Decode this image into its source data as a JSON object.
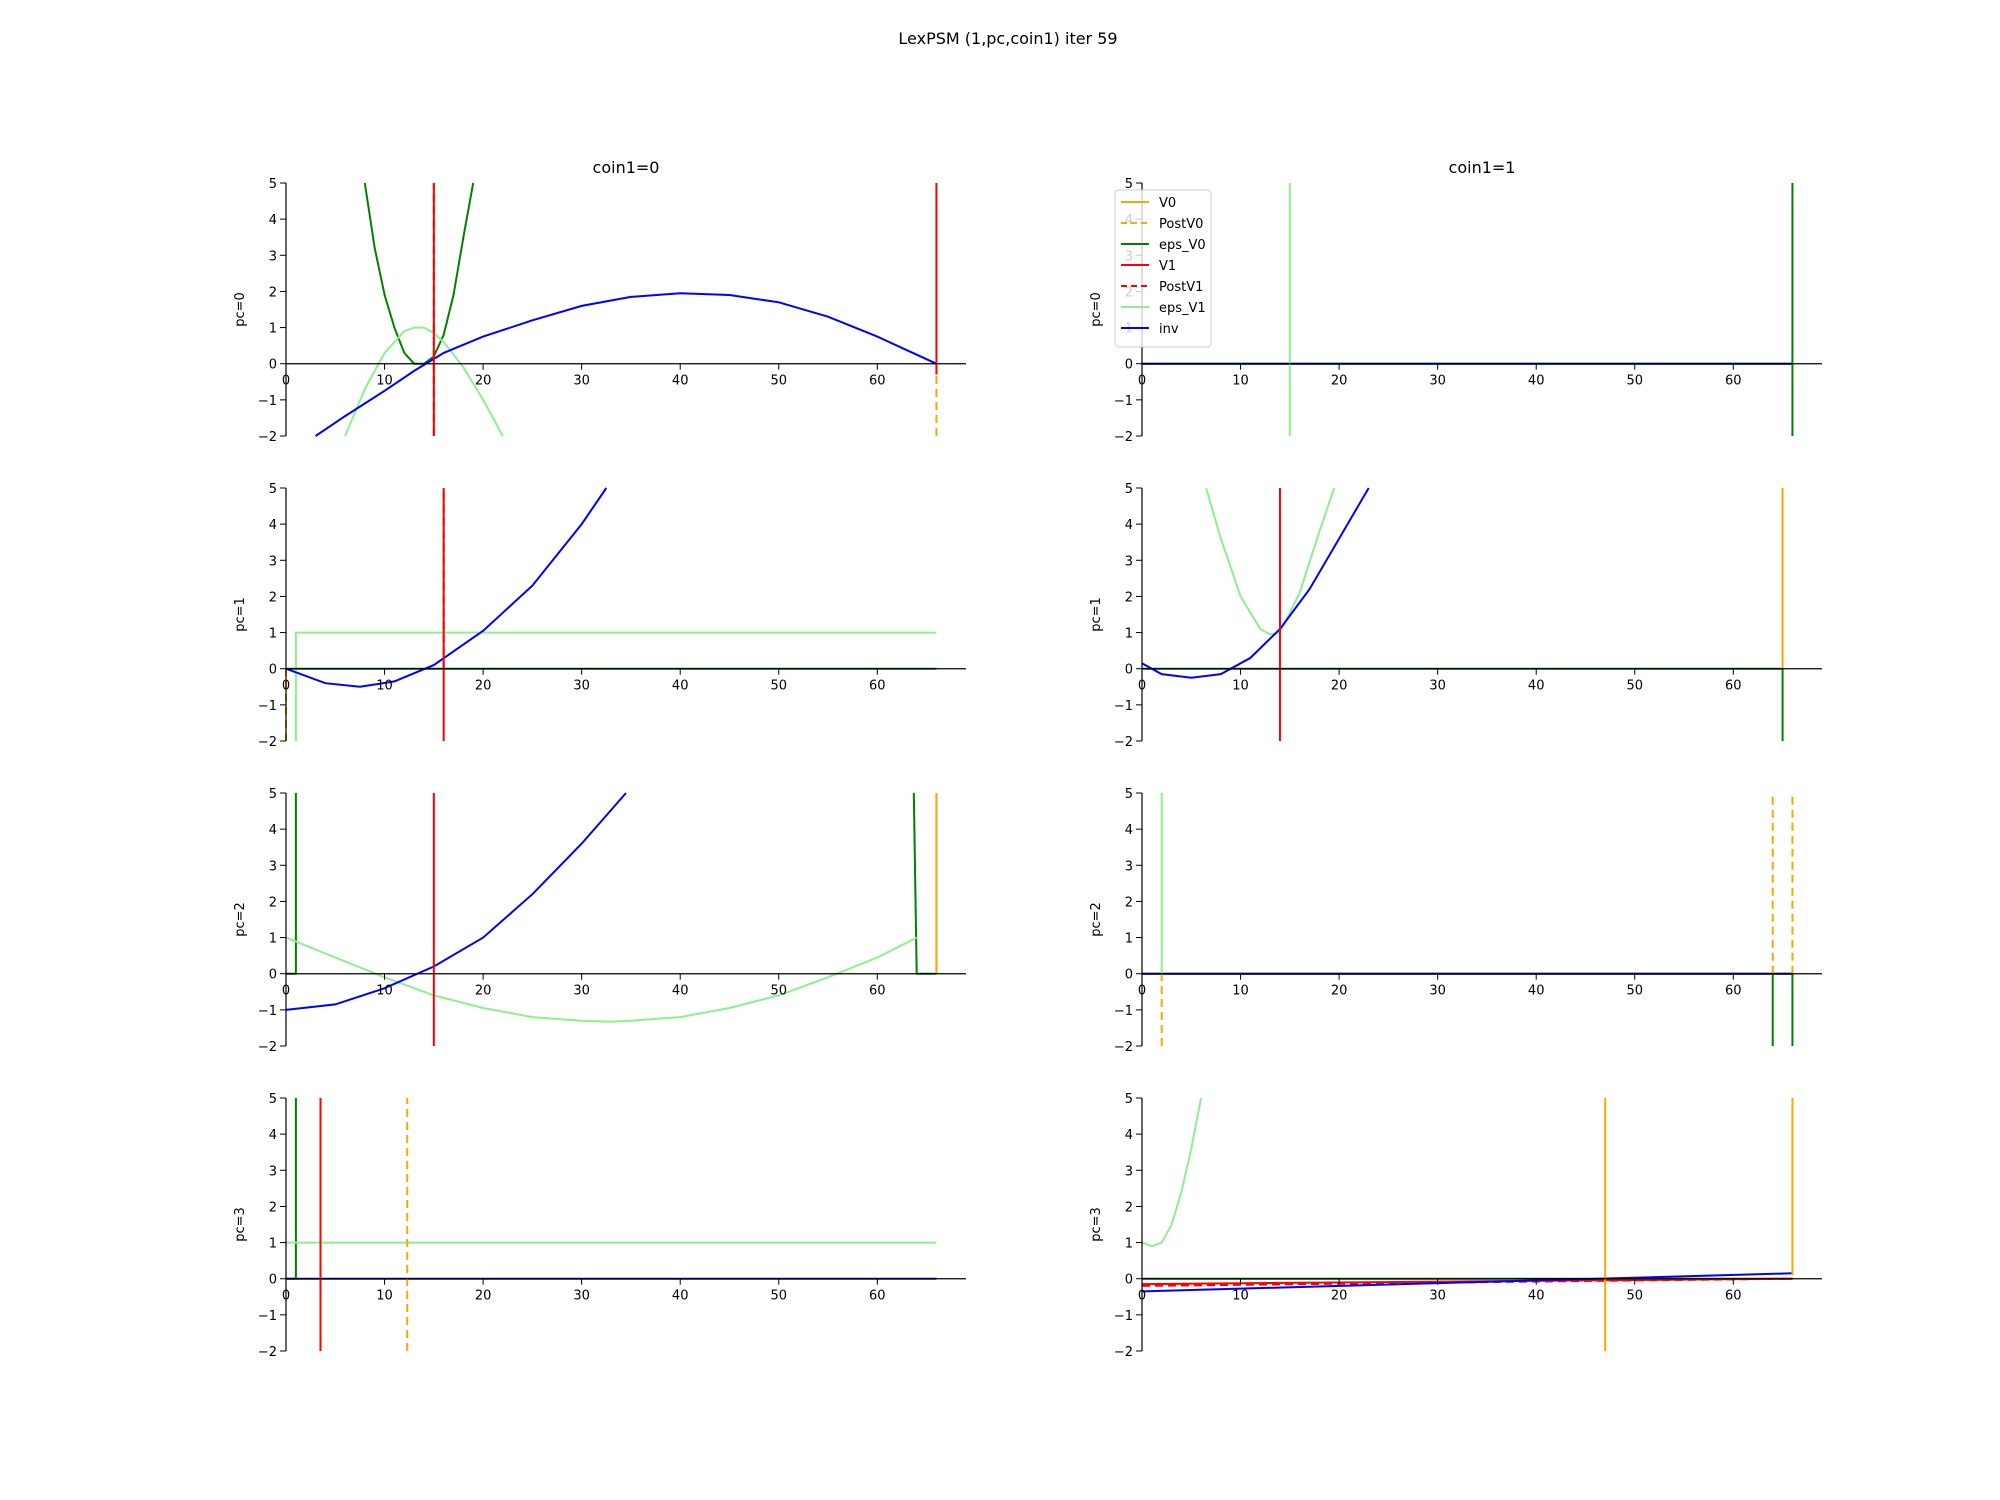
{
  "title": "LexPSM (1,pc,coin1) iter 59",
  "colors": {
    "V0": "#ffa500",
    "PostV0": "#ffa500",
    "eps_V0": "#008000",
    "V1": "#ff0000",
    "PostV1": "#ff0000",
    "eps_V1": "#90ee90",
    "inv": "#0000ff"
  },
  "legend": {
    "location": "upper-left of coin1=1, pc=0 panel",
    "entries": [
      {
        "name": "V0",
        "color": "#ffa500",
        "dash": "solid"
      },
      {
        "name": "PostV0",
        "color": "#ffa500",
        "dash": "dashed"
      },
      {
        "name": "eps_V0",
        "color": "#008000",
        "dash": "solid"
      },
      {
        "name": "V1",
        "color": "#ff0000",
        "dash": "solid"
      },
      {
        "name": "PostV1",
        "color": "#ff0000",
        "dash": "dashed"
      },
      {
        "name": "eps_V1",
        "color": "#90ee90",
        "dash": "solid"
      },
      {
        "name": "inv",
        "color": "#0000ff",
        "dash": "solid"
      }
    ]
  },
  "chart_data": [
    {
      "type": "line",
      "title": "coin1=0",
      "ylabel": "pc=0",
      "row": 0,
      "col": 0,
      "xlim": [
        0,
        69
      ],
      "ylim": [
        -2,
        5
      ],
      "xticks": [
        0,
        10,
        20,
        30,
        40,
        50,
        60
      ],
      "yticks": [
        -2,
        -1,
        0,
        1,
        2,
        3,
        4,
        5
      ],
      "series": [
        {
          "name": "eps_V0",
          "kind": "curve",
          "x": [
            8,
            9,
            10,
            11,
            12,
            13,
            14,
            15,
            16,
            17,
            18,
            19
          ],
          "y": [
            5.0,
            3.2,
            1.9,
            1.0,
            0.3,
            0.0,
            0.0,
            0.2,
            0.8,
            1.9,
            3.5,
            5.0
          ]
        },
        {
          "name": "eps_V1",
          "kind": "curve",
          "x": [
            6,
            8,
            10,
            12,
            13,
            14,
            15,
            16,
            18,
            20,
            22
          ],
          "y": [
            -2.0,
            -0.7,
            0.3,
            0.9,
            1.0,
            1.0,
            0.85,
            0.6,
            -0.1,
            -1.0,
            -2.0
          ]
        },
        {
          "name": "inv",
          "kind": "curve",
          "x": [
            3,
            6,
            10,
            13,
            16,
            20,
            25,
            30,
            35,
            40,
            45,
            50,
            55,
            60,
            66
          ],
          "y": [
            -2.0,
            -1.45,
            -0.75,
            -0.2,
            0.3,
            0.75,
            1.2,
            1.6,
            1.85,
            1.95,
            1.9,
            1.7,
            1.3,
            0.75,
            0.0
          ]
        },
        {
          "name": "V1",
          "kind": "vline",
          "x": 15,
          "y": [
            -2,
            5
          ]
        },
        {
          "name": "PostV1",
          "kind": "vline",
          "x": 15,
          "y": [
            -2,
            5
          ]
        },
        {
          "name": "PostV0",
          "kind": "vline",
          "x": 66,
          "y": [
            -2,
            0
          ]
        },
        {
          "name": "V1",
          "kind": "vline",
          "x": 66,
          "y": [
            -0.3,
            5
          ]
        }
      ]
    },
    {
      "type": "line",
      "title": "coin1=1",
      "ylabel": "pc=0",
      "row": 0,
      "col": 1,
      "xlim": [
        0,
        69
      ],
      "ylim": [
        -2,
        5
      ],
      "xticks": [
        0,
        10,
        20,
        30,
        40,
        50,
        60
      ],
      "yticks": [
        -2,
        -1,
        0,
        1,
        2,
        3,
        4,
        5
      ],
      "series": [
        {
          "name": "eps_V0",
          "kind": "hline",
          "x": [
            0,
            66
          ],
          "y": 0
        },
        {
          "name": "inv",
          "kind": "hline",
          "x": [
            0,
            66
          ],
          "y": 0
        },
        {
          "name": "eps_V1",
          "kind": "vline",
          "x": 15,
          "y": [
            -2,
            5
          ]
        },
        {
          "name": "eps_V0",
          "kind": "vline",
          "x": 66,
          "y": [
            -2,
            5
          ]
        }
      ]
    },
    {
      "type": "line",
      "title": "",
      "ylabel": "pc=1",
      "row": 1,
      "col": 0,
      "xlim": [
        0,
        69
      ],
      "ylim": [
        -2,
        5
      ],
      "xticks": [
        0,
        10,
        20,
        30,
        40,
        50,
        60
      ],
      "yticks": [
        -2,
        -1,
        0,
        1,
        2,
        3,
        4,
        5
      ],
      "series": [
        {
          "name": "eps_V1",
          "kind": "curve",
          "x": [
            1,
            1,
            66
          ],
          "y": [
            -2,
            1,
            1
          ]
        },
        {
          "name": "eps_V0",
          "kind": "hline",
          "x": [
            0,
            66
          ],
          "y": 0
        },
        {
          "name": "PostV0",
          "kind": "vline",
          "x": 0,
          "y": [
            -2,
            0
          ]
        },
        {
          "name": "inv",
          "kind": "curve",
          "x": [
            0,
            4,
            7.5,
            11,
            15,
            20,
            25,
            30,
            32.5
          ],
          "y": [
            0.0,
            -0.4,
            -0.5,
            -0.35,
            0.1,
            1.05,
            2.3,
            4.0,
            5.0
          ]
        },
        {
          "name": "V1",
          "kind": "vline",
          "x": 16,
          "y": [
            -2,
            5
          ]
        },
        {
          "name": "PostV1",
          "kind": "vline",
          "x": 16,
          "y": [
            0,
            5
          ]
        }
      ]
    },
    {
      "type": "line",
      "title": "",
      "ylabel": "pc=1",
      "row": 1,
      "col": 1,
      "xlim": [
        0,
        69
      ],
      "ylim": [
        -2,
        5
      ],
      "xticks": [
        0,
        10,
        20,
        30,
        40,
        50,
        60
      ],
      "yticks": [
        -2,
        -1,
        0,
        1,
        2,
        3,
        4,
        5
      ],
      "series": [
        {
          "name": "eps_V0",
          "kind": "hline",
          "x": [
            0,
            65
          ],
          "y": 0
        },
        {
          "name": "eps_V0",
          "kind": "vline",
          "x": 65,
          "y": [
            -2,
            0
          ]
        },
        {
          "name": "V0",
          "kind": "vline",
          "x": 65,
          "y": [
            0,
            5
          ]
        },
        {
          "name": "eps_V1",
          "kind": "curve",
          "x": [
            6.5,
            8,
            10,
            12,
            13,
            14,
            16,
            18,
            19.5
          ],
          "y": [
            5.0,
            3.6,
            2.0,
            1.1,
            0.95,
            1.0,
            2.1,
            3.8,
            5.0
          ]
        },
        {
          "name": "inv",
          "kind": "curve",
          "x": [
            0,
            2,
            5,
            8,
            11,
            14,
            17,
            20,
            23
          ],
          "y": [
            0.15,
            -0.15,
            -0.25,
            -0.15,
            0.3,
            1.1,
            2.2,
            3.6,
            5.0
          ]
        },
        {
          "name": "V1",
          "kind": "vline",
          "x": 14,
          "y": [
            -2,
            5
          ]
        }
      ]
    },
    {
      "type": "line",
      "title": "",
      "ylabel": "pc=2",
      "row": 2,
      "col": 0,
      "xlim": [
        0,
        69
      ],
      "ylim": [
        -2,
        5
      ],
      "xticks": [
        0,
        10,
        20,
        30,
        40,
        50,
        60
      ],
      "yticks": [
        -2,
        -1,
        0,
        1,
        2,
        3,
        4,
        5
      ],
      "series": [
        {
          "name": "eps_V0",
          "kind": "curve",
          "x": [
            0,
            1,
            1
          ],
          "y": [
            0,
            0,
            5
          ]
        },
        {
          "name": "eps_V0",
          "kind": "curve",
          "x": [
            63.7,
            64,
            66
          ],
          "y": [
            5,
            0,
            0
          ]
        },
        {
          "name": "eps_V1",
          "kind": "curve",
          "x": [
            0,
            5,
            10,
            15,
            20,
            25,
            30,
            33,
            35,
            40,
            45,
            50,
            55,
            60,
            64
          ],
          "y": [
            1.0,
            0.45,
            -0.1,
            -0.6,
            -0.95,
            -1.2,
            -1.3,
            -1.33,
            -1.3,
            -1.2,
            -0.95,
            -0.6,
            -0.1,
            0.45,
            1.0
          ]
        },
        {
          "name": "inv",
          "kind": "curve",
          "x": [
            0,
            5,
            10,
            15,
            20,
            25,
            30,
            34.5
          ],
          "y": [
            -1.0,
            -0.85,
            -0.4,
            0.2,
            1.0,
            2.2,
            3.6,
            5.0
          ]
        },
        {
          "name": "V1",
          "kind": "vline",
          "x": 15,
          "y": [
            -2,
            5
          ]
        },
        {
          "name": "eps_V1",
          "kind": "vline",
          "x": 66,
          "y": [
            0,
            5
          ]
        },
        {
          "name": "V0",
          "kind": "vline",
          "x": 66,
          "y": [
            0,
            5
          ]
        }
      ]
    },
    {
      "type": "line",
      "title": "",
      "ylabel": "pc=2",
      "row": 2,
      "col": 1,
      "xlim": [
        0,
        69
      ],
      "ylim": [
        -2,
        5
      ],
      "xticks": [
        0,
        10,
        20,
        30,
        40,
        50,
        60
      ],
      "yticks": [
        -2,
        -1,
        0,
        1,
        2,
        3,
        4,
        5
      ],
      "series": [
        {
          "name": "eps_V0",
          "kind": "hline",
          "x": [
            0,
            66
          ],
          "y": 0
        },
        {
          "name": "inv",
          "kind": "hline",
          "x": [
            0,
            66
          ],
          "y": 0
        },
        {
          "name": "eps_V1",
          "kind": "vline",
          "x": 2,
          "y": [
            0,
            5
          ]
        },
        {
          "name": "PostV0",
          "kind": "vline",
          "x": 2,
          "y": [
            -2,
            0
          ]
        },
        {
          "name": "PostV0",
          "kind": "vline",
          "x": 64,
          "y": [
            0,
            5
          ]
        },
        {
          "name": "eps_V0",
          "kind": "vline",
          "x": 64,
          "y": [
            -2,
            0
          ]
        },
        {
          "name": "PostV0",
          "kind": "vline",
          "x": 66,
          "y": [
            0,
            5
          ]
        },
        {
          "name": "eps_V0",
          "kind": "vline",
          "x": 66,
          "y": [
            -2,
            0
          ]
        }
      ]
    },
    {
      "type": "line",
      "title": "",
      "ylabel": "pc=3",
      "row": 3,
      "col": 0,
      "xlim": [
        0,
        69
      ],
      "ylim": [
        -2,
        5
      ],
      "xticks": [
        0,
        10,
        20,
        30,
        40,
        50,
        60
      ],
      "yticks": [
        -2,
        -1,
        0,
        1,
        2,
        3,
        4,
        5
      ],
      "series": [
        {
          "name": "eps_V0",
          "kind": "curve",
          "x": [
            0,
            1,
            1
          ],
          "y": [
            0,
            0,
            5
          ]
        },
        {
          "name": "eps_V1",
          "kind": "curve",
          "x": [
            0,
            66
          ],
          "y": [
            1,
            1
          ]
        },
        {
          "name": "inv",
          "kind": "hline",
          "x": [
            0,
            66
          ],
          "y": 0
        },
        {
          "name": "V1",
          "kind": "vline",
          "x": 3.5,
          "y": [
            -2,
            5
          ]
        },
        {
          "name": "PostV0",
          "kind": "vline",
          "x": 12.3,
          "y": [
            -2,
            5
          ]
        }
      ]
    },
    {
      "type": "line",
      "title": "",
      "ylabel": "pc=3",
      "row": 3,
      "col": 1,
      "xlim": [
        0,
        69
      ],
      "ylim": [
        -2,
        5
      ],
      "xticks": [
        0,
        10,
        20,
        30,
        40,
        50,
        60
      ],
      "yticks": [
        -2,
        -1,
        0,
        1,
        2,
        3,
        4,
        5
      ],
      "series": [
        {
          "name": "eps_V0",
          "kind": "hline",
          "x": [
            0,
            66
          ],
          "y": 0
        },
        {
          "name": "eps_V1",
          "kind": "curve",
          "x": [
            0,
            1,
            2,
            3,
            4,
            5,
            6
          ],
          "y": [
            1.0,
            0.9,
            1.0,
            1.5,
            2.4,
            3.6,
            5.0
          ]
        },
        {
          "name": "V1",
          "kind": "curve",
          "x": [
            0,
            66
          ],
          "y": [
            -0.15,
            0.0
          ]
        },
        {
          "name": "PostV1",
          "kind": "curve",
          "x": [
            0,
            66
          ],
          "y": [
            -0.2,
            0.0
          ]
        },
        {
          "name": "inv",
          "kind": "curve",
          "x": [
            0,
            66
          ],
          "y": [
            -0.35,
            0.15
          ]
        },
        {
          "name": "V0",
          "kind": "vline",
          "x": 47,
          "y": [
            -2,
            5
          ]
        },
        {
          "name": "V0",
          "kind": "vline",
          "x": 66,
          "y": [
            0.1,
            5
          ]
        }
      ]
    }
  ]
}
